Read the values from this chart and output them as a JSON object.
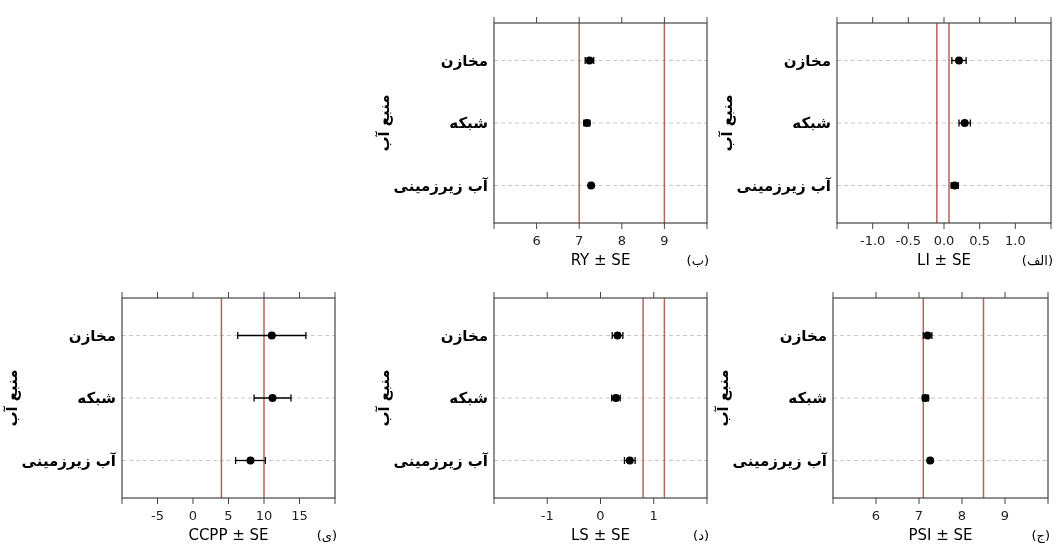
{
  "chart_data": [
    {
      "type": "scatter",
      "orientation": "horizontal",
      "xlabel": "RY ± SE",
      "ylabel": "منبع آب",
      "annotations": [
        "(ب)"
      ],
      "categories": [
        "مخازن",
        "شبکه",
        "آب زیرزمینی"
      ],
      "values": [
        7.24,
        7.18,
        7.28
      ],
      "errors": [
        0.1,
        0.07,
        0.04
      ],
      "color": "#000000",
      "marker": "circle",
      "xlim": [
        5,
        10
      ],
      "xticks": [
        {
          "value": 5,
          "label": null
        },
        6,
        7,
        8,
        9,
        {
          "value": 10,
          "label": null
        }
      ],
      "ref_lines": [
        {
          "axis": "x",
          "value": 7,
          "color": "#b8625c"
        },
        {
          "axis": "x",
          "value": 9,
          "color": "#b8625c"
        }
      ],
      "grid": "y"
    },
    {
      "type": "scatter",
      "orientation": "horizontal",
      "xlabel": "LI ± SE",
      "ylabel": "منبع آب",
      "annotations": [
        "(الف)"
      ],
      "categories": [
        "مخازن",
        "شبکه",
        "آب زیرزمینی"
      ],
      "values": [
        0.21,
        0.29,
        0.15
      ],
      "errors": [
        0.1,
        0.08,
        0.05
      ],
      "color": "#000000",
      "marker": "circle",
      "xlim": [
        -1.5,
        1.5
      ],
      "xticks": [
        {
          "value": -1.5,
          "label": null
        },
        {
          "value": -1,
          "label": "-1.0"
        },
        -0.5,
        {
          "value": 0,
          "label": "0.0"
        },
        0.5,
        {
          "value": 1,
          "label": "1.0"
        },
        {
          "value": 1.5,
          "label": null
        }
      ],
      "ref_lines": [
        {
          "axis": "x",
          "value": -0.1,
          "color": "#b8625c"
        },
        {
          "axis": "x",
          "value": 0.07,
          "color": "#b8625c"
        }
      ],
      "grid": "y"
    },
    {
      "type": "scatter",
      "orientation": "horizontal",
      "xlabel": "CCPP ± SE",
      "ylabel": "منبع آب",
      "annotations": [
        "(ی)"
      ],
      "categories": [
        "مخازن",
        "شبکه",
        "آب زیرزمینی"
      ],
      "values": [
        11.1,
        11.2,
        8.1
      ],
      "errors": [
        4.8,
        2.6,
        2.1
      ],
      "color": "#000000",
      "marker": "circle",
      "xlim": [
        -10,
        20
      ],
      "xticks": [
        {
          "value": -10,
          "label": null
        },
        -5,
        0,
        5,
        10,
        15,
        {
          "value": 20,
          "label": null
        }
      ],
      "ref_lines": [
        {
          "axis": "x",
          "value": 4,
          "color": "#b8625c"
        },
        {
          "axis": "x",
          "value": 10,
          "color": "#b8625c"
        }
      ],
      "grid": "y"
    },
    {
      "type": "scatter",
      "orientation": "horizontal",
      "xlabel": "LS ± SE",
      "ylabel": "منبع آب",
      "annotations": [
        "(د)"
      ],
      "categories": [
        "مخازن",
        "شبکه",
        "آب زیرزمینی"
      ],
      "values": [
        0.32,
        0.29,
        0.55
      ],
      "errors": [
        0.1,
        0.08,
        0.1
      ],
      "color": "#000000",
      "marker": "circle",
      "xlim": [
        -2,
        2
      ],
      "xticks": [
        {
          "value": -2,
          "label": null
        },
        -1,
        0,
        1,
        {
          "value": 2,
          "label": null
        }
      ],
      "ref_lines": [
        {
          "axis": "x",
          "value": 0.8,
          "color": "#b8625c"
        },
        {
          "axis": "x",
          "value": 1.2,
          "color": "#b8625c"
        }
      ],
      "grid": "y"
    },
    {
      "type": "scatter",
      "orientation": "horizontal",
      "xlabel": "PSI ± SE",
      "ylabel": "منبع آب",
      "annotations": [
        "(ج)"
      ],
      "categories": [
        "مخازن",
        "شبکه",
        "آب زیرزمینی"
      ],
      "values": [
        7.2,
        7.15,
        7.26
      ],
      "errors": [
        0.1,
        0.07,
        0.04
      ],
      "color": "#000000",
      "marker": "circle",
      "xlim": [
        5,
        10
      ],
      "xticks": [
        {
          "value": 5,
          "label": null
        },
        6,
        7,
        8,
        9,
        {
          "value": 10,
          "label": null
        }
      ],
      "ref_lines": [
        {
          "axis": "x",
          "value": 7.1,
          "color": "#b8625c"
        },
        {
          "axis": "x",
          "value": 8.5,
          "color": "#b8625c"
        }
      ],
      "grid": "y"
    }
  ]
}
